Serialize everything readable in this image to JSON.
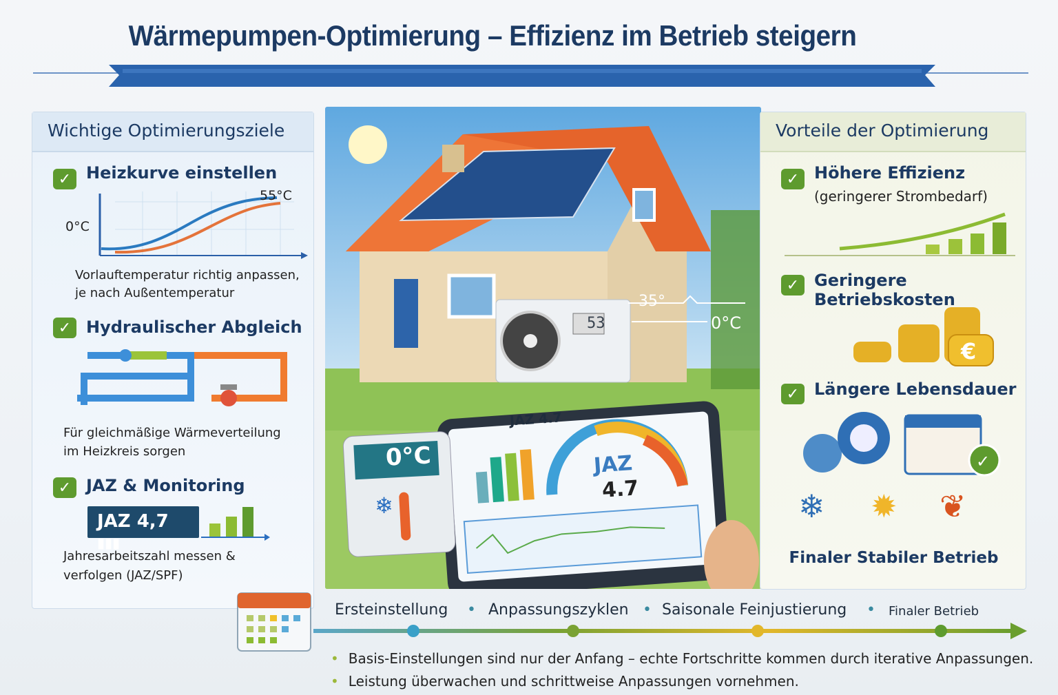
{
  "title": "Wärmepumpen-Optimierung – Effizienz im Betrieb steigern",
  "left_panel": {
    "heading": "Wichtige Optimierungsziele",
    "items": [
      {
        "title": "Heizkurve einstellen",
        "desc_line1": "Vorlauftemperatur richtig anpassen,",
        "desc_line2": "je nach Außentemperatur",
        "chart_low": "0°C",
        "chart_high": "55°C"
      },
      {
        "title": "Hydraulischer Abgleich",
        "desc_line1": "Für gleichmäßige Wärmeverteilung",
        "desc_line2": "im Heizkreis sorgen"
      },
      {
        "title": "JAZ & Monitoring",
        "badge": "JAZ 4,7",
        "desc_line1": "Jahresarbeitszahl messen &",
        "desc_line2": "verfolgen (JAZ/SPF)"
      }
    ]
  },
  "center": {
    "unit_display": "53",
    "flow_temp": "35°",
    "outside_temp": "0°C",
    "thermostat_temp": "0°C",
    "tablet_title": "JAZ 4.7",
    "gauge_label": "JAZ",
    "gauge_value": "4.7"
  },
  "right_panel": {
    "heading": "Vorteile der Optimierung",
    "items": [
      {
        "title": "Höhere Effizienz",
        "subtitle": "(geringerer Strombedarf)"
      },
      {
        "title": "Geringere Betriebskosten"
      },
      {
        "title": "Längere Lebensdauer"
      }
    ],
    "footer": "Finaler Stabiler Betrieb"
  },
  "timeline": {
    "steps": [
      "Ersteinstellung",
      "Anpassungszyklen",
      "Saisonale Feinjustierung",
      "Finaler Betrieb"
    ],
    "colors": [
      "#3aa0c8",
      "#7aa233",
      "#e2b72a",
      "#5e9b2e"
    ]
  },
  "bullets": [
    "Basis-Einstellungen sind nur der Anfang – echte Fortschritte kommen durch iterative Anpassungen.",
    "Leistung überwachen und schrittweise Anpassungen vornehmen."
  ],
  "colors": {
    "accent": "#1c3a63",
    "check": "#5e9b2e",
    "ribbon": "#2a63ad"
  }
}
